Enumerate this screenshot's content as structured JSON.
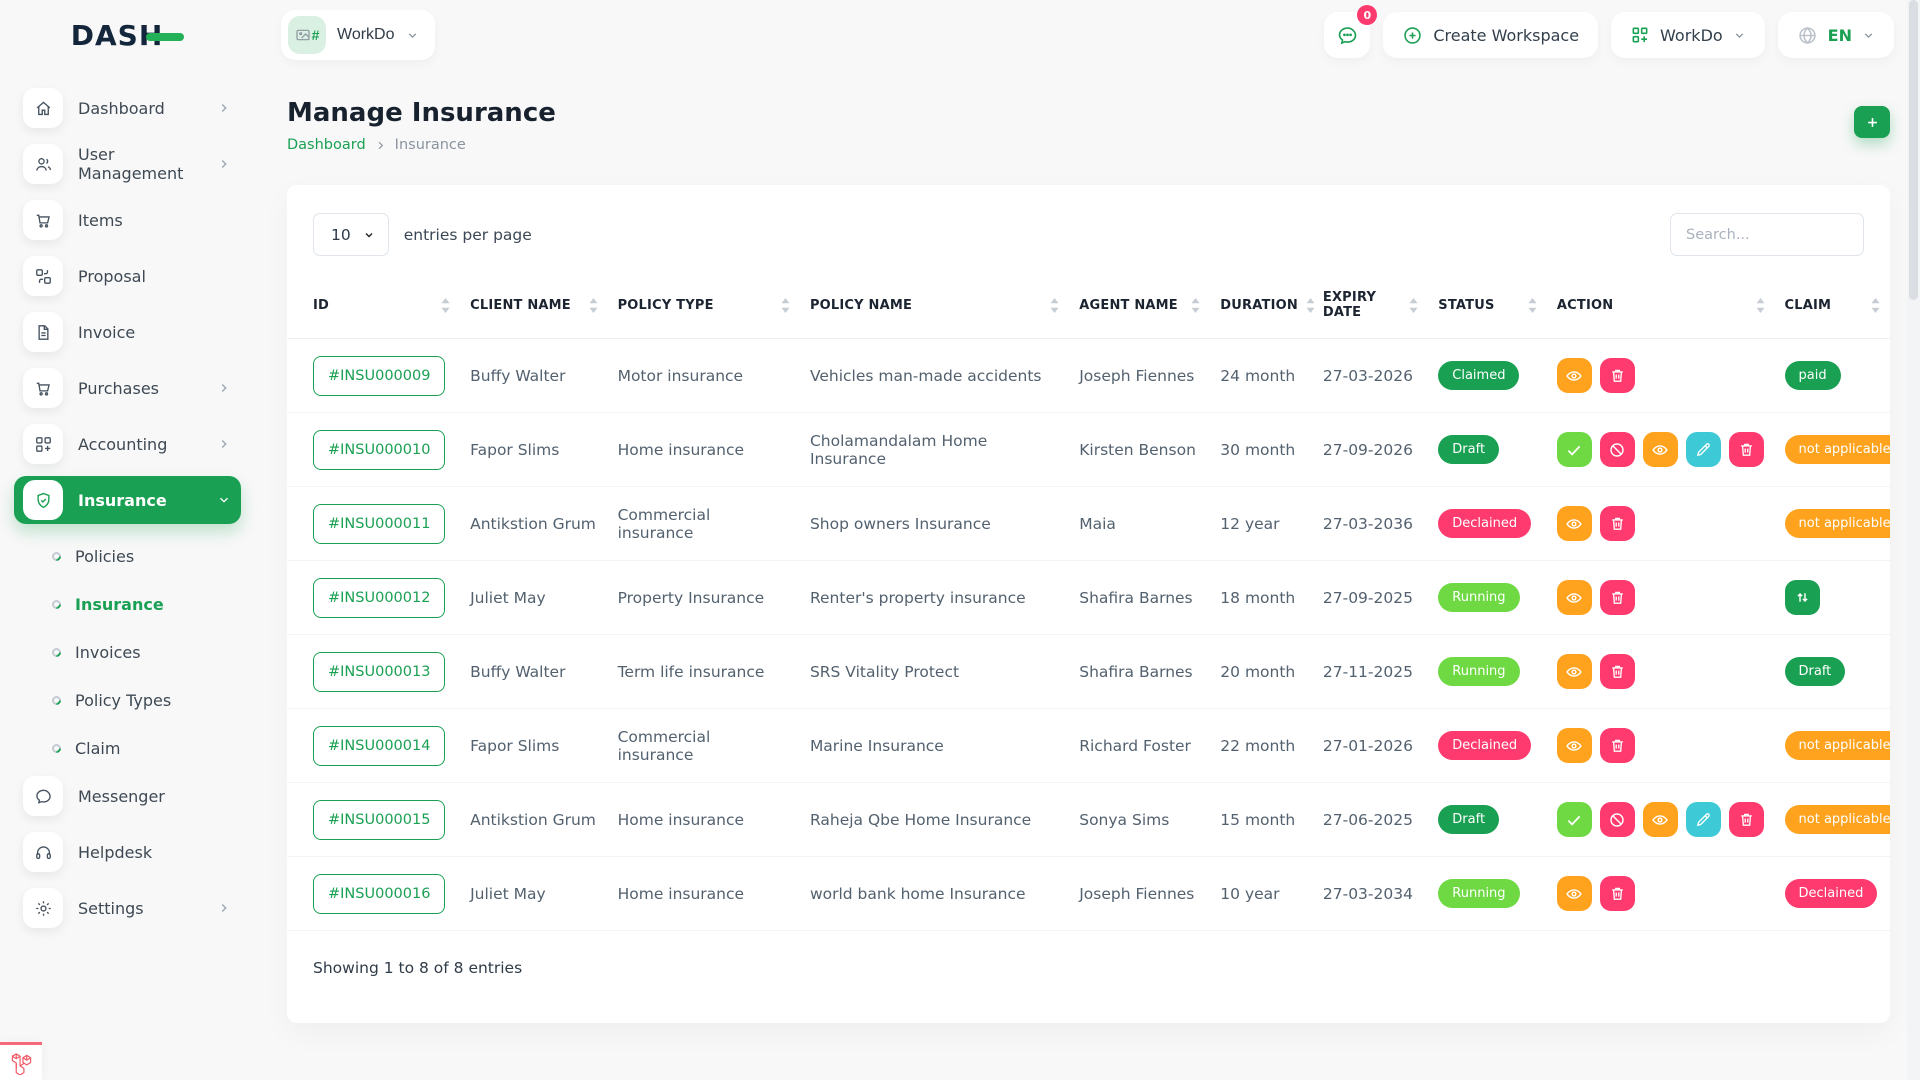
{
  "brand": {
    "logo_text": "DASH"
  },
  "topbar": {
    "workspace_selector": {
      "label": "WorkDo",
      "avatar_hash": "#"
    },
    "messages_badge": "0",
    "create_workspace_label": "Create Workspace",
    "workspace_menu_label": "WorkDo",
    "language_label": "EN"
  },
  "sidebar": {
    "items": [
      {
        "label": "Dashboard",
        "icon": "home",
        "has_chevron": true
      },
      {
        "label": "User Management",
        "icon": "users",
        "has_chevron": true
      },
      {
        "label": "Items",
        "icon": "cart",
        "has_chevron": false
      },
      {
        "label": "Proposal",
        "icon": "proposal",
        "has_chevron": false
      },
      {
        "label": "Invoice",
        "icon": "invoice",
        "has_chevron": false
      },
      {
        "label": "Purchases",
        "icon": "cart",
        "has_chevron": true
      },
      {
        "label": "Accounting",
        "icon": "accounting",
        "has_chevron": true
      },
      {
        "label": "Insurance",
        "icon": "shield",
        "has_chevron": true,
        "active": true,
        "expanded": true,
        "children": [
          {
            "label": "Policies",
            "active": false
          },
          {
            "label": "Insurance",
            "active": true
          },
          {
            "label": "Invoices",
            "active": false
          },
          {
            "label": "Policy Types",
            "active": false
          },
          {
            "label": "Claim",
            "active": false
          }
        ]
      },
      {
        "label": "Messenger",
        "icon": "messenger",
        "has_chevron": false
      },
      {
        "label": "Helpdesk",
        "icon": "headset",
        "has_chevron": false
      },
      {
        "label": "Settings",
        "icon": "gear",
        "has_chevron": true
      }
    ]
  },
  "page": {
    "title": "Manage Insurance",
    "breadcrumb": [
      "Dashboard",
      "Insurance"
    ]
  },
  "table": {
    "entries_per_page": "10",
    "entries_label": "entries per page",
    "search_placeholder": "Search...",
    "columns": [
      "ID",
      "CLIENT NAME",
      "POLICY TYPE",
      "POLICY NAME",
      "AGENT NAME",
      "DURATION",
      "EXPIRY DATE",
      "STATUS",
      "ACTION",
      "CLAIM"
    ],
    "rows": [
      {
        "id": "#INSU000009",
        "client": "Buffy Walter",
        "policy_type": "Motor insurance",
        "policy_name": "Vehicles man-made accidents",
        "agent": "Joseph Fiennes",
        "duration": "24 month",
        "expiry": "27-03-2026",
        "status": {
          "label": "Claimed",
          "variant": "green"
        },
        "actions": [
          "eye",
          "trash"
        ],
        "claim": {
          "kind": "badge",
          "label": "paid",
          "variant": "green"
        }
      },
      {
        "id": "#INSU000010",
        "client": "Fapor Slims",
        "policy_type": "Home insurance",
        "policy_name": "Cholamandalam Home Insurance",
        "agent": "Kirsten Benson",
        "duration": "30 month",
        "expiry": "27-09-2026",
        "status": {
          "label": "Draft",
          "variant": "green"
        },
        "actions": [
          "check",
          "ban",
          "eye",
          "edit",
          "trash"
        ],
        "claim": {
          "kind": "badge",
          "label": "not applicable",
          "variant": "orange"
        }
      },
      {
        "id": "#INSU000011",
        "client": "Antikstion Grum",
        "policy_type": "Commercial insurance",
        "policy_name": "Shop owners Insurance",
        "agent": "Maia",
        "duration": "12 year",
        "expiry": "27-03-2036",
        "status": {
          "label": "Declained",
          "variant": "pink"
        },
        "actions": [
          "eye",
          "trash"
        ],
        "claim": {
          "kind": "badge",
          "label": "not applicable",
          "variant": "orange"
        }
      },
      {
        "id": "#INSU000012",
        "client": "Juliet May",
        "policy_type": "Property Insurance",
        "policy_name": "Renter's property insurance",
        "agent": "Shafira Barnes",
        "duration": "18 month",
        "expiry": "27-09-2025",
        "status": {
          "label": "Running",
          "variant": "lightgreen"
        },
        "actions": [
          "eye",
          "trash"
        ],
        "claim": {
          "kind": "button",
          "icon": "transfer",
          "variant": "green"
        }
      },
      {
        "id": "#INSU000013",
        "client": "Buffy Walter",
        "policy_type": "Term life insurance",
        "policy_name": "SRS Vitality Protect",
        "agent": "Shafira Barnes",
        "duration": "20 month",
        "expiry": "27-11-2025",
        "status": {
          "label": "Running",
          "variant": "lightgreen"
        },
        "actions": [
          "eye",
          "trash"
        ],
        "claim": {
          "kind": "badge",
          "label": "Draft",
          "variant": "green"
        }
      },
      {
        "id": "#INSU000014",
        "client": "Fapor Slims",
        "policy_type": "Commercial insurance",
        "policy_name": "Marine Insurance",
        "agent": "Richard Foster",
        "duration": "22 month",
        "expiry": "27-01-2026",
        "status": {
          "label": "Declained",
          "variant": "pink"
        },
        "actions": [
          "eye",
          "trash"
        ],
        "claim": {
          "kind": "badge",
          "label": "not applicable",
          "variant": "orange"
        }
      },
      {
        "id": "#INSU000015",
        "client": "Antikstion Grum",
        "policy_type": "Home insurance",
        "policy_name": "Raheja Qbe Home Insurance",
        "agent": "Sonya Sims",
        "duration": "15 month",
        "expiry": "27-06-2025",
        "status": {
          "label": "Draft",
          "variant": "green"
        },
        "actions": [
          "check",
          "ban",
          "eye",
          "edit",
          "trash"
        ],
        "claim": {
          "kind": "badge",
          "label": "not applicable",
          "variant": "orange"
        }
      },
      {
        "id": "#INSU000016",
        "client": "Juliet May",
        "policy_type": "Home insurance",
        "policy_name": "world bank home Insurance",
        "agent": "Joseph Fiennes",
        "duration": "10 year",
        "expiry": "27-03-2034",
        "status": {
          "label": "Running",
          "variant": "lightgreen"
        },
        "actions": [
          "eye",
          "trash"
        ],
        "claim": {
          "kind": "badge",
          "label": "Declained",
          "variant": "pink"
        }
      }
    ],
    "footer": "Showing 1 to 8 of 8 entries"
  },
  "colors": {
    "primary_green": "#1aa053",
    "light_green": "#6fd943",
    "orange": "#ffa21d",
    "pink": "#ff3a6e",
    "teal": "#3ec9d6",
    "laravel_red": "#f56a76",
    "logo_navy": "#13263c",
    "logo_green": "#22b157"
  }
}
